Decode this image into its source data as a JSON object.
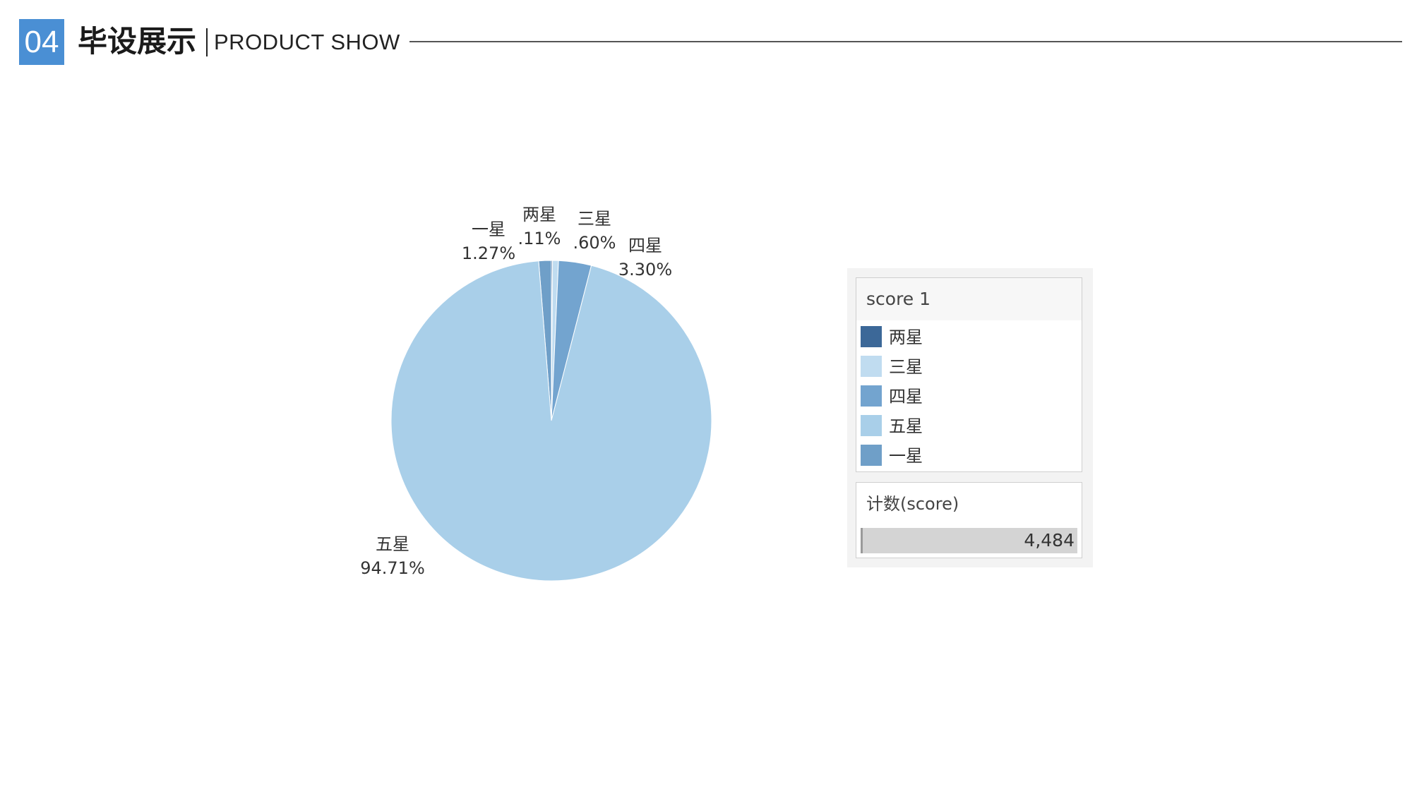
{
  "header": {
    "number": "04",
    "title": "毕设展示",
    "subtitle": "PRODUCT SHOW"
  },
  "chart_data": {
    "type": "pie",
    "slices": [
      {
        "name": "一星",
        "percent_label": "1.27%",
        "value": 1.27,
        "color": "#6f9fc8"
      },
      {
        "name": "两星",
        "percent_label": ".11%",
        "value": 0.11,
        "color": "#3c6898"
      },
      {
        "name": "三星",
        "percent_label": ".60%",
        "value": 0.6,
        "color": "#c0dcf0"
      },
      {
        "name": "四星",
        "percent_label": "3.30%",
        "value": 3.3,
        "color": "#73a4cf"
      },
      {
        "name": "五星",
        "percent_label": "94.71%",
        "value": 94.71,
        "color": "#a9cfe9"
      }
    ]
  },
  "legend": {
    "title": "score 1",
    "items": [
      {
        "label": "两星",
        "color": "#3c6898"
      },
      {
        "label": "三星",
        "color": "#c0dcf0"
      },
      {
        "label": "四星",
        "color": "#73a4cf"
      },
      {
        "label": "五星",
        "color": "#a9cfe9"
      },
      {
        "label": "一星",
        "color": "#6f9fc8"
      }
    ]
  },
  "count": {
    "title": "计数(score)",
    "value": "4,484"
  }
}
